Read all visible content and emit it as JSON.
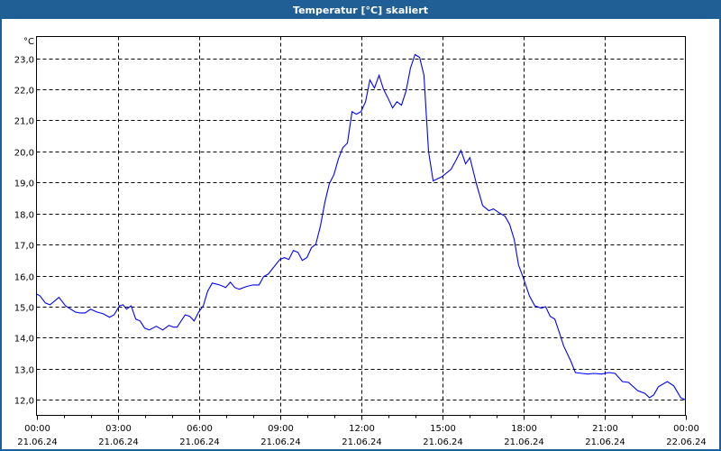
{
  "window": {
    "title": "Temperatur [°C] skaliert"
  },
  "chart_data": {
    "type": "line",
    "title": "Temperatur [°C] skaliert",
    "ylabel": "°C",
    "xlabel": "",
    "xlim": [
      0,
      24
    ],
    "ylim": [
      11.5,
      23.7
    ],
    "grid": true,
    "line_color": "#0000ff",
    "yticks": [
      {
        "v": 23,
        "label": "23,0"
      },
      {
        "v": 22,
        "label": "22,0"
      },
      {
        "v": 21,
        "label": "21,0"
      },
      {
        "v": 20,
        "label": "20,0"
      },
      {
        "v": 19,
        "label": "19,0"
      },
      {
        "v": 18,
        "label": "18,0"
      },
      {
        "v": 17,
        "label": "17,0"
      },
      {
        "v": 16,
        "label": "16,0"
      },
      {
        "v": 15,
        "label": "15,0"
      },
      {
        "v": 14,
        "label": "14,0"
      },
      {
        "v": 13,
        "label": "13,0"
      },
      {
        "v": 12,
        "label": "12,0"
      }
    ],
    "xticks": [
      {
        "h": 0,
        "time": "00:00",
        "date": "21.06.24"
      },
      {
        "h": 3,
        "time": "03:00",
        "date": "21.06.24"
      },
      {
        "h": 6,
        "time": "06:00",
        "date": "21.06.24"
      },
      {
        "h": 9,
        "time": "09:00",
        "date": "21.06.24"
      },
      {
        "h": 12,
        "time": "12:00",
        "date": "21.06.24"
      },
      {
        "h": 15,
        "time": "15:00",
        "date": "21.06.24"
      },
      {
        "h": 18,
        "time": "18:00",
        "date": "21.06.24"
      },
      {
        "h": 21,
        "time": "21:00",
        "date": "21.06.24"
      },
      {
        "h": 24,
        "time": "00:00",
        "date": "22.06.24"
      }
    ],
    "series": [
      {
        "name": "Temperatur",
        "x": [
          0,
          0.13,
          0.33,
          0.5,
          0.83,
          1.07,
          1.43,
          1.6,
          1.8,
          2,
          2.23,
          2.47,
          2.7,
          2.87,
          3.07,
          3.2,
          3.33,
          3.5,
          3.67,
          3.83,
          4,
          4.17,
          4.43,
          4.67,
          4.9,
          5.07,
          5.2,
          5.5,
          5.67,
          5.83,
          6,
          6.17,
          6.33,
          6.5,
          6.77,
          7,
          7.17,
          7.33,
          7.5,
          7.77,
          8,
          8.23,
          8.4,
          8.57,
          9,
          9.17,
          9.33,
          9.5,
          9.67,
          9.83,
          10,
          10.17,
          10.33,
          10.5,
          10.67,
          10.83,
          11,
          11.17,
          11.33,
          11.5,
          11.67,
          11.83,
          12,
          12.17,
          12.33,
          12.5,
          12.67,
          12.83,
          13,
          13.17,
          13.33,
          13.5,
          13.67,
          13.83,
          14,
          14.17,
          14.33,
          14.43,
          14.5,
          14.67,
          15,
          15.33,
          15.5,
          15.7,
          15.87,
          16.03,
          16.27,
          16.5,
          16.73,
          16.9,
          17.1,
          17.33,
          17.5,
          17.67,
          17.83,
          18,
          18.23,
          18.43,
          18.67,
          18.83,
          19,
          19.17,
          19.33,
          19.5,
          19.77,
          19.93,
          20.17,
          20.4,
          20.6,
          20.9,
          21.17,
          21.4,
          21.67,
          21.9,
          22.23,
          22.5,
          22.67,
          22.83,
          23,
          23.33,
          23.57,
          23.83,
          24
        ],
        "y": [
          15.41,
          15.35,
          15.12,
          15.06,
          15.3,
          15.03,
          14.83,
          14.8,
          14.8,
          14.92,
          14.83,
          14.77,
          14.66,
          14.74,
          15.03,
          15.06,
          14.92,
          15.03,
          14.6,
          14.54,
          14.31,
          14.25,
          14.37,
          14.25,
          14.4,
          14.34,
          14.34,
          14.74,
          14.69,
          14.54,
          14.83,
          15.03,
          15.5,
          15.76,
          15.7,
          15.62,
          15.79,
          15.62,
          15.56,
          15.65,
          15.7,
          15.7,
          15.97,
          16.05,
          16.52,
          16.58,
          16.52,
          16.81,
          16.75,
          16.49,
          16.58,
          16.9,
          17.01,
          17.59,
          18.38,
          18.96,
          19.25,
          19.77,
          20.12,
          20.27,
          21.28,
          21.2,
          21.28,
          21.6,
          22.3,
          22.04,
          22.45,
          22.01,
          21.72,
          21.4,
          21.6,
          21.49,
          21.95,
          22.68,
          23.12,
          23.03,
          22.45,
          21.0,
          20.0,
          19.05,
          19.19,
          19.42,
          19.69,
          20.03,
          19.6,
          19.8,
          18.96,
          18.26,
          18.09,
          18.15,
          18.03,
          17.91,
          17.65,
          17.16,
          16.34,
          15.94,
          15.35,
          15.03,
          14.95,
          15.0,
          14.69,
          14.6,
          14.19,
          13.73,
          13.23,
          12.88,
          12.85,
          12.83,
          12.85,
          12.83,
          12.88,
          12.85,
          12.59,
          12.56,
          12.3,
          12.21,
          12.07,
          12.16,
          12.42,
          12.59,
          12.45,
          12.07,
          12.0
        ]
      }
    ]
  }
}
